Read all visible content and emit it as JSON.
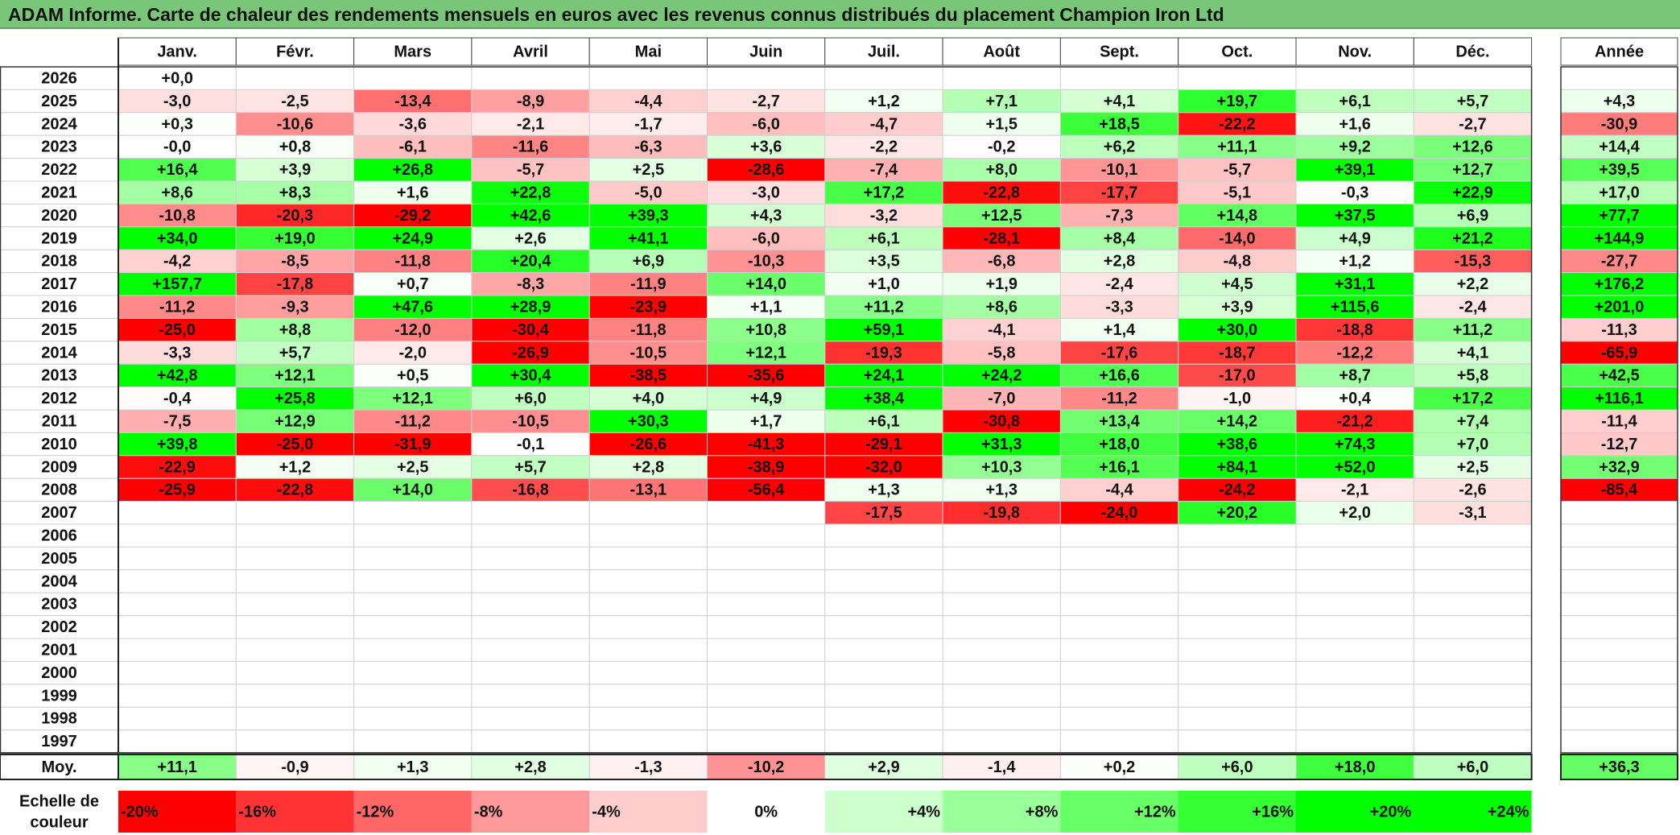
{
  "title": "ADAM Informe. Carte de chaleur des rendements mensuels en euros avec les revenus connus distribués du placement Champion Iron Ltd",
  "chart_data": {
    "type": "heatmap",
    "title": "ADAM Informe. Carte de chaleur des rendements mensuels en euros avec les revenus connus distribués du placement Champion Iron Ltd",
    "months": [
      "Janv.",
      "Févr.",
      "Mars",
      "Avril",
      "Mai",
      "Juin",
      "Juil.",
      "Août",
      "Sept.",
      "Oct.",
      "Nov.",
      "Déc."
    ],
    "year_column_label": "Année",
    "rows": [
      {
        "year": "2026",
        "values": [
          "+0,0",
          "",
          "",
          "",
          "",
          "",
          "",
          "",
          "",
          "",
          "",
          ""
        ],
        "annual": ""
      },
      {
        "year": "2025",
        "values": [
          "-3,0",
          "-2,5",
          "-13,4",
          "-8,9",
          "-4,4",
          "-2,7",
          "+1,2",
          "+7,1",
          "+4,1",
          "+19,7",
          "+6,1",
          "+5,7"
        ],
        "annual": "+4,3"
      },
      {
        "year": "2024",
        "values": [
          "+0,3",
          "-10,6",
          "-3,6",
          "-2,1",
          "-1,7",
          "-6,0",
          "-4,7",
          "+1,5",
          "+18,5",
          "-22,2",
          "+1,6",
          "-2,7"
        ],
        "annual": "-30,9"
      },
      {
        "year": "2023",
        "values": [
          "-0,0",
          "+0,8",
          "-6,1",
          "-11,6",
          "-6,3",
          "+3,6",
          "-2,2",
          "-0,2",
          "+6,2",
          "+11,1",
          "+9,2",
          "+12,6"
        ],
        "annual": "+14,4"
      },
      {
        "year": "2022",
        "values": [
          "+16,4",
          "+3,9",
          "+26,8",
          "-5,7",
          "+2,5",
          "-28,6",
          "-7,4",
          "+8,0",
          "-10,1",
          "-5,7",
          "+39,1",
          "+12,7"
        ],
        "annual": "+39,5"
      },
      {
        "year": "2021",
        "values": [
          "+8,6",
          "+8,3",
          "+1,6",
          "+22,8",
          "-5,0",
          "-3,0",
          "+17,2",
          "-22,8",
          "-17,7",
          "-5,1",
          "-0,3",
          "+22,9"
        ],
        "annual": "+17,0"
      },
      {
        "year": "2020",
        "values": [
          "-10,8",
          "-20,3",
          "-29,2",
          "+42,6",
          "+39,3",
          "+4,3",
          "-3,2",
          "+12,5",
          "-7,3",
          "+14,8",
          "+37,5",
          "+6,9"
        ],
        "annual": "+77,7"
      },
      {
        "year": "2019",
        "values": [
          "+34,0",
          "+19,0",
          "+24,9",
          "+2,6",
          "+41,1",
          "-6,0",
          "+6,1",
          "-28,1",
          "+8,4",
          "-14,0",
          "+4,9",
          "+21,2"
        ],
        "annual": "+144,9"
      },
      {
        "year": "2018",
        "values": [
          "-4,2",
          "-8,5",
          "-11,8",
          "+20,4",
          "+6,9",
          "-10,3",
          "+3,5",
          "-6,8",
          "+2,8",
          "-4,8",
          "+1,2",
          "-15,3"
        ],
        "annual": "-27,7"
      },
      {
        "year": "2017",
        "values": [
          "+157,7",
          "-17,8",
          "+0,7",
          "-8,3",
          "-11,9",
          "+14,0",
          "+1,0",
          "+1,9",
          "-2,4",
          "+4,5",
          "+31,1",
          "+2,2"
        ],
        "annual": "+176,2"
      },
      {
        "year": "2016",
        "values": [
          "-11,2",
          "-9,3",
          "+47,6",
          "+28,9",
          "-23,9",
          "+1,1",
          "+11,2",
          "+8,6",
          "-3,3",
          "+3,9",
          "+115,6",
          "-2,4"
        ],
        "annual": "+201,0"
      },
      {
        "year": "2015",
        "values": [
          "-25,0",
          "+8,8",
          "-12,0",
          "-30,4",
          "-11,8",
          "+10,8",
          "+59,1",
          "-4,1",
          "+1,4",
          "+30,0",
          "-18,8",
          "+11,2"
        ],
        "annual": "-11,3"
      },
      {
        "year": "2014",
        "values": [
          "-3,3",
          "+5,7",
          "-2,0",
          "-26,9",
          "-10,5",
          "+12,1",
          "-19,3",
          "-5,8",
          "-17,6",
          "-18,7",
          "-12,2",
          "+4,1"
        ],
        "annual": "-65,9"
      },
      {
        "year": "2013",
        "values": [
          "+42,8",
          "+12,1",
          "+0,5",
          "+30,4",
          "-38,5",
          "-35,6",
          "+24,1",
          "+24,2",
          "+16,6",
          "-17,0",
          "+8,7",
          "+5,8"
        ],
        "annual": "+42,5"
      },
      {
        "year": "2012",
        "values": [
          "-0,4",
          "+25,8",
          "+12,1",
          "+6,0",
          "+4,0",
          "+4,9",
          "+38,4",
          "-7,0",
          "-11,2",
          "-1,0",
          "+0,4",
          "+17,2"
        ],
        "annual": "+116,1"
      },
      {
        "year": "2011",
        "values": [
          "-7,5",
          "+12,9",
          "-11,2",
          "-10,5",
          "+30,3",
          "+1,7",
          "+6,1",
          "-30,8",
          "+13,4",
          "+14,2",
          "-21,2",
          "+7,4"
        ],
        "annual": "-11,4"
      },
      {
        "year": "2010",
        "values": [
          "+39,8",
          "-25,0",
          "-31,9",
          "-0,1",
          "-26,6",
          "-41,3",
          "-29,1",
          "+31,3",
          "+18,0",
          "+38,6",
          "+74,3",
          "+7,0"
        ],
        "annual": "-12,7"
      },
      {
        "year": "2009",
        "values": [
          "-22,9",
          "+1,2",
          "+2,5",
          "+5,7",
          "+2,8",
          "-38,9",
          "-32,0",
          "+10,3",
          "+16,1",
          "+84,1",
          "+52,0",
          "+2,5"
        ],
        "annual": "+32,9"
      },
      {
        "year": "2008",
        "values": [
          "-25,9",
          "-22,8",
          "+14,0",
          "-16,8",
          "-13,1",
          "-56,4",
          "+1,3",
          "+1,3",
          "-4,4",
          "-24,2",
          "-2,1",
          "-2,6"
        ],
        "annual": "-85,4"
      },
      {
        "year": "2007",
        "values": [
          "",
          "",
          "",
          "",
          "",
          "",
          "-17,5",
          "-19,8",
          "-24,0",
          "+20,2",
          "+2,0",
          "-3,1"
        ],
        "annual": ""
      },
      {
        "year": "2006",
        "values": [
          "",
          "",
          "",
          "",
          "",
          "",
          "",
          "",
          "",
          "",
          "",
          ""
        ],
        "annual": ""
      },
      {
        "year": "2005",
        "values": [
          "",
          "",
          "",
          "",
          "",
          "",
          "",
          "",
          "",
          "",
          "",
          ""
        ],
        "annual": ""
      },
      {
        "year": "2004",
        "values": [
          "",
          "",
          "",
          "",
          "",
          "",
          "",
          "",
          "",
          "",
          "",
          ""
        ],
        "annual": ""
      },
      {
        "year": "2003",
        "values": [
          "",
          "",
          "",
          "",
          "",
          "",
          "",
          "",
          "",
          "",
          "",
          ""
        ],
        "annual": ""
      },
      {
        "year": "2002",
        "values": [
          "",
          "",
          "",
          "",
          "",
          "",
          "",
          "",
          "",
          "",
          "",
          ""
        ],
        "annual": ""
      },
      {
        "year": "2001",
        "values": [
          "",
          "",
          "",
          "",
          "",
          "",
          "",
          "",
          "",
          "",
          "",
          ""
        ],
        "annual": ""
      },
      {
        "year": "2000",
        "values": [
          "",
          "",
          "",
          "",
          "",
          "",
          "",
          "",
          "",
          "",
          "",
          ""
        ],
        "annual": ""
      },
      {
        "year": "1999",
        "values": [
          "",
          "",
          "",
          "",
          "",
          "",
          "",
          "",
          "",
          "",
          "",
          ""
        ],
        "annual": ""
      },
      {
        "year": "1998",
        "values": [
          "",
          "",
          "",
          "",
          "",
          "",
          "",
          "",
          "",
          "",
          "",
          ""
        ],
        "annual": ""
      },
      {
        "year": "1997",
        "values": [
          "",
          "",
          "",
          "",
          "",
          "",
          "",
          "",
          "",
          "",
          "",
          ""
        ],
        "annual": ""
      }
    ],
    "average": {
      "label": "Moy.",
      "values": [
        "+11,1",
        "-0,9",
        "+1,3",
        "+2,8",
        "-1,3",
        "-10,2",
        "+2,9",
        "-1,4",
        "+0,2",
        "+6,0",
        "+18,0",
        "+6,0"
      ],
      "annual": "+36,3"
    },
    "color_scale": {
      "label_line1": "Echelle de",
      "label_line2": "couleur",
      "stops": [
        {
          "label": "-20%",
          "value": -20,
          "align": "left"
        },
        {
          "label": "-16%",
          "value": -16,
          "align": "left"
        },
        {
          "label": "-12%",
          "value": -12,
          "align": "left"
        },
        {
          "label": "-8%",
          "value": -8,
          "align": "left"
        },
        {
          "label": "-4%",
          "value": -4,
          "align": "left"
        },
        {
          "label": "0%",
          "value": 0,
          "align": "center"
        },
        {
          "label": "+4%",
          "value": 4,
          "align": "right"
        },
        {
          "label": "+8%",
          "value": 8,
          "align": "right"
        },
        {
          "label": "+12%",
          "value": 12,
          "align": "right"
        },
        {
          "label": "+16%",
          "value": 16,
          "align": "right"
        },
        {
          "label": "+20%",
          "value": 20,
          "align": "right"
        },
        {
          "label": "+24%",
          "value": 24,
          "align": "right"
        }
      ],
      "colors": {
        "negative_max": "#ff0000",
        "neutral": "#ffffff",
        "positive_max": "#00ff00"
      }
    }
  }
}
